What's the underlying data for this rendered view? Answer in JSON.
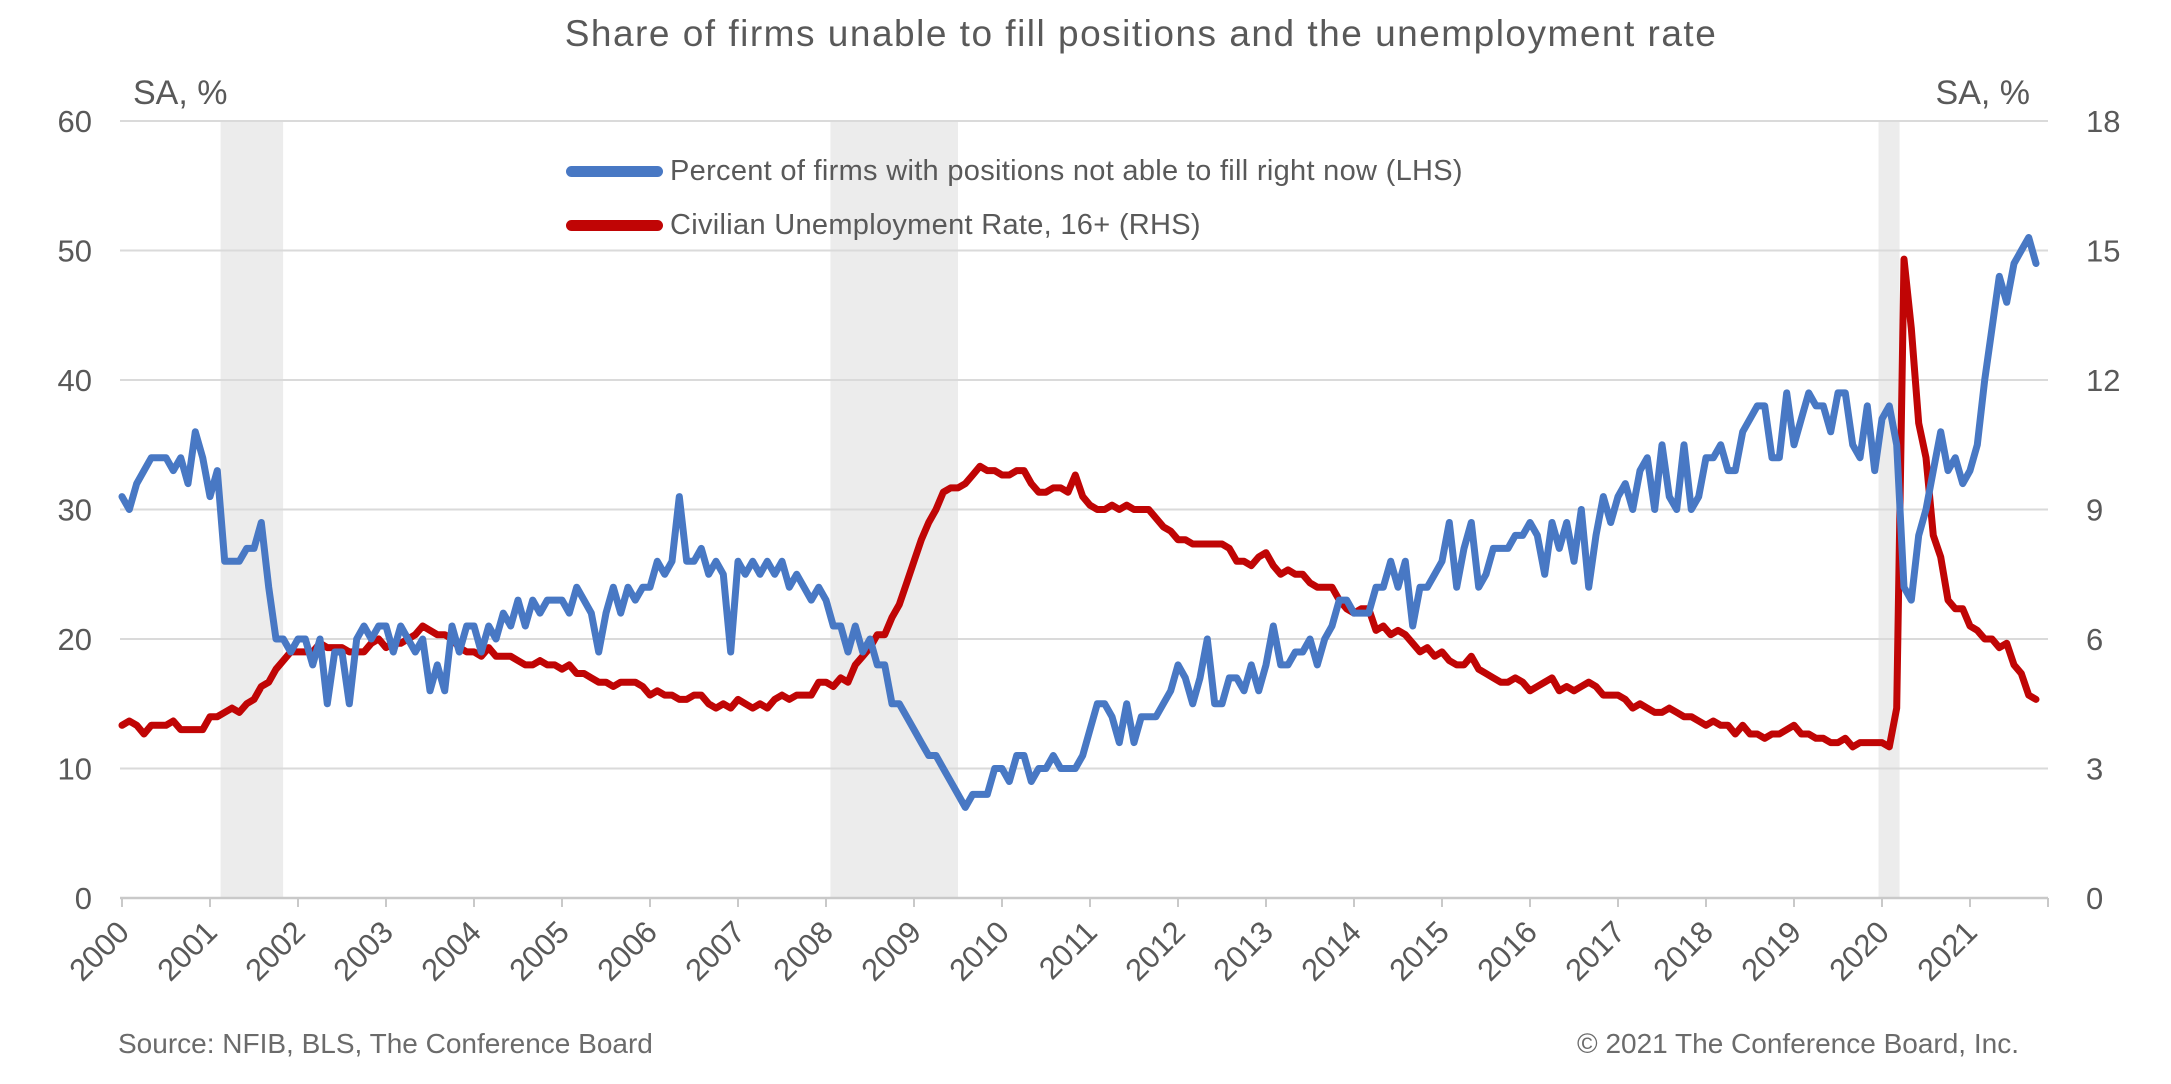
{
  "title": "Share of firms unable to fill positions and the unemployment rate",
  "left_axis": {
    "unit": "SA, %"
  },
  "right_axis": {
    "unit": "SA, %"
  },
  "footer": {
    "source": "Source: NFIB, BLS, The Conference Board",
    "copyright": "© 2021 The Conference Board, Inc."
  },
  "style": {
    "blue": "#4878C4",
    "red": "#C00505",
    "grid_color": "#DADADA",
    "axis_color": "#C9C9C9",
    "band_color": "#ECECEC",
    "text_color": "#595959"
  },
  "chart_data": {
    "type": "line",
    "title": "Share of firms unable to fill positions and the unemployment rate",
    "frequency": "monthly",
    "x_start": "2000-01",
    "x_end": "2021-10",
    "grid": "horizontal",
    "legend_position": "top-center-inside",
    "x_tick_labels": [
      "2000",
      "2001",
      "2002",
      "2003",
      "2004",
      "2005",
      "2006",
      "2007",
      "2008",
      "2009",
      "2010",
      "2011",
      "2012",
      "2013",
      "2014",
      "2015",
      "2016",
      "2017",
      "2018",
      "2019",
      "2020",
      "2021"
    ],
    "left_axis": {
      "label": "SA, %",
      "range": [
        0,
        60
      ],
      "ticks": [
        0,
        10,
        20,
        30,
        40,
        50,
        60
      ]
    },
    "right_axis": {
      "label": "SA, %",
      "range": [
        0,
        18
      ],
      "ticks": [
        0,
        3,
        6,
        9,
        12,
        15,
        18
      ]
    },
    "recession_bands": [
      {
        "start": 2001.12,
        "end": 2001.83
      },
      {
        "start": 2008.05,
        "end": 2009.5
      },
      {
        "start": 2019.96,
        "end": 2020.2
      }
    ],
    "series": [
      {
        "name": "Percent of firms with positions not able to fill right now (LHS)",
        "axis": "left",
        "color": "#4878C4",
        "values": [
          31,
          30,
          32,
          33,
          34,
          34,
          34,
          33,
          34,
          32,
          36,
          34,
          31,
          33,
          26,
          26,
          26,
          27,
          27,
          29,
          24,
          20,
          20,
          19,
          20,
          20,
          18,
          20,
          15,
          19,
          19,
          15,
          20,
          21,
          20,
          21,
          21,
          19,
          21,
          20,
          19,
          20,
          16,
          18,
          16,
          21,
          19,
          21,
          21,
          19,
          21,
          20,
          22,
          21,
          23,
          21,
          23,
          22,
          23,
          23,
          23,
          22,
          24,
          23,
          22,
          19,
          22,
          24,
          22,
          24,
          23,
          24,
          24,
          26,
          25,
          26,
          31,
          26,
          26,
          27,
          25,
          26,
          25,
          19,
          26,
          25,
          26,
          25,
          26,
          25,
          26,
          24,
          25,
          24,
          23,
          24,
          23,
          21,
          21,
          19,
          21,
          19,
          20,
          18,
          18,
          15,
          15,
          14,
          13,
          12,
          11,
          11,
          10,
          9,
          8,
          7,
          8,
          8,
          8,
          10,
          10,
          9,
          11,
          11,
          9,
          10,
          10,
          11,
          10,
          10,
          10,
          11,
          13,
          15,
          15,
          14,
          12,
          15,
          12,
          14,
          14,
          14,
          15,
          16,
          18,
          17,
          15,
          17,
          20,
          15,
          15,
          17,
          17,
          16,
          18,
          16,
          18,
          21,
          18,
          18,
          19,
          19,
          20,
          18,
          20,
          21,
          23,
          23,
          22,
          22,
          22,
          24,
          24,
          26,
          24,
          26,
          21,
          24,
          24,
          25,
          26,
          29,
          24,
          27,
          29,
          24,
          25,
          27,
          27,
          27,
          28,
          28,
          29,
          28,
          25,
          29,
          27,
          29,
          26,
          30,
          24,
          28,
          31,
          29,
          31,
          32,
          30,
          33,
          34,
          30,
          35,
          31,
          30,
          35,
          30,
          31,
          34,
          34,
          35,
          33,
          33,
          36,
          37,
          38,
          38,
          34,
          34,
          39,
          35,
          37,
          39,
          38,
          38,
          36,
          39,
          39,
          35,
          34,
          38,
          33,
          37,
          38,
          35,
          24,
          23,
          28,
          30,
          33,
          36,
          33,
          34,
          32,
          33,
          35,
          40,
          44,
          48,
          46,
          49,
          50,
          51,
          49
        ]
      },
      {
        "name": "Civilian Unemployment Rate, 16+ (RHS)",
        "axis": "right",
        "color": "#C00505",
        "values": [
          4.0,
          4.1,
          4.0,
          3.8,
          4.0,
          4.0,
          4.0,
          4.1,
          3.9,
          3.9,
          3.9,
          3.9,
          4.2,
          4.2,
          4.3,
          4.4,
          4.3,
          4.5,
          4.6,
          4.9,
          5.0,
          5.3,
          5.5,
          5.7,
          5.7,
          5.7,
          5.7,
          5.9,
          5.8,
          5.8,
          5.8,
          5.7,
          5.7,
          5.7,
          5.9,
          6.0,
          5.8,
          5.9,
          5.9,
          6.0,
          6.1,
          6.3,
          6.2,
          6.1,
          6.1,
          6.0,
          5.8,
          5.7,
          5.7,
          5.6,
          5.8,
          5.6,
          5.6,
          5.6,
          5.5,
          5.4,
          5.4,
          5.5,
          5.4,
          5.4,
          5.3,
          5.4,
          5.2,
          5.2,
          5.1,
          5.0,
          5.0,
          4.9,
          5.0,
          5.0,
          5.0,
          4.9,
          4.7,
          4.8,
          4.7,
          4.7,
          4.6,
          4.6,
          4.7,
          4.7,
          4.5,
          4.4,
          4.5,
          4.4,
          4.6,
          4.5,
          4.4,
          4.5,
          4.4,
          4.6,
          4.7,
          4.6,
          4.7,
          4.7,
          4.7,
          5.0,
          5.0,
          4.9,
          5.1,
          5.0,
          5.4,
          5.6,
          5.8,
          6.1,
          6.1,
          6.5,
          6.8,
          7.3,
          7.8,
          8.3,
          8.7,
          9.0,
          9.4,
          9.5,
          9.5,
          9.6,
          9.8,
          10.0,
          9.9,
          9.9,
          9.8,
          9.8,
          9.9,
          9.9,
          9.6,
          9.4,
          9.4,
          9.5,
          9.5,
          9.4,
          9.8,
          9.3,
          9.1,
          9.0,
          9.0,
          9.1,
          9.0,
          9.1,
          9.0,
          9.0,
          9.0,
          8.8,
          8.6,
          8.5,
          8.3,
          8.3,
          8.2,
          8.2,
          8.2,
          8.2,
          8.2,
          8.1,
          7.8,
          7.8,
          7.7,
          7.9,
          8.0,
          7.7,
          7.5,
          7.6,
          7.5,
          7.5,
          7.3,
          7.2,
          7.2,
          7.2,
          6.9,
          6.7,
          6.6,
          6.7,
          6.7,
          6.2,
          6.3,
          6.1,
          6.2,
          6.1,
          5.9,
          5.7,
          5.8,
          5.6,
          5.7,
          5.5,
          5.4,
          5.4,
          5.6,
          5.3,
          5.2,
          5.1,
          5.0,
          5.0,
          5.1,
          5.0,
          4.8,
          4.9,
          5.0,
          5.1,
          4.8,
          4.9,
          4.8,
          4.9,
          5.0,
          4.9,
          4.7,
          4.7,
          4.7,
          4.6,
          4.4,
          4.5,
          4.4,
          4.3,
          4.3,
          4.4,
          4.3,
          4.2,
          4.2,
          4.1,
          4.0,
          4.1,
          4.0,
          4.0,
          3.8,
          4.0,
          3.8,
          3.8,
          3.7,
          3.8,
          3.8,
          3.9,
          4.0,
          3.8,
          3.8,
          3.7,
          3.7,
          3.6,
          3.6,
          3.7,
          3.5,
          3.6,
          3.6,
          3.6,
          3.6,
          3.5,
          4.4,
          14.8,
          13.2,
          11.0,
          10.2,
          8.4,
          7.9,
          6.9,
          6.7,
          6.7,
          6.3,
          6.2,
          6.0,
          6.0,
          5.8,
          5.9,
          5.4,
          5.2,
          4.7,
          4.6
        ]
      }
    ]
  }
}
